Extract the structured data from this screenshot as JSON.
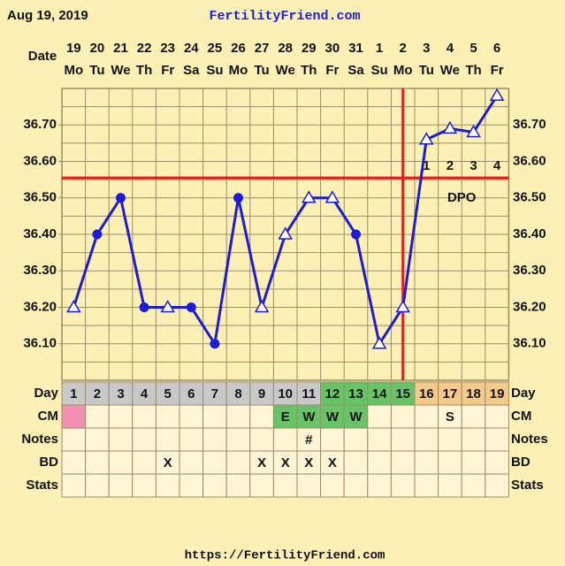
{
  "header": {
    "date": "Aug 19, 2019",
    "site": "FertilityFriend.com"
  },
  "chart_data": {
    "type": "line",
    "x_label": "Date",
    "categories": [
      "19",
      "20",
      "21",
      "22",
      "23",
      "24",
      "25",
      "26",
      "27",
      "28",
      "29",
      "30",
      "31",
      "1",
      "2",
      "3",
      "4",
      "5",
      "6"
    ],
    "weekdays": [
      "Mo",
      "Tu",
      "We",
      "Th",
      "Fr",
      "Sa",
      "Su",
      "Mo",
      "Tu",
      "We",
      "Th",
      "Fr",
      "Sa",
      "Su",
      "Mo",
      "Tu",
      "We",
      "Th",
      "Fr"
    ],
    "series": [
      {
        "color": "#1c1cd8",
        "values": [
          36.2,
          36.4,
          36.5,
          36.2,
          36.2,
          36.2,
          36.1,
          36.5,
          36.2,
          36.4,
          36.5,
          36.5,
          36.4,
          36.1,
          36.2,
          36.66,
          36.69,
          36.68,
          36.78
        ],
        "markers": [
          "triangle",
          "circle",
          "circle",
          "circle",
          "triangle",
          "circle",
          "circle",
          "circle",
          "triangle",
          "triangle",
          "triangle",
          "triangle",
          "circle",
          "triangle",
          "triangle",
          "triangle",
          "triangle",
          "triangle",
          "triangle"
        ]
      }
    ],
    "ylim": [
      36.0,
      36.8
    ],
    "yticks": [
      {
        "value": 36.1,
        "label": "36.10"
      },
      {
        "value": 36.2,
        "label": "36.20"
      },
      {
        "value": 36.3,
        "label": "36.30"
      },
      {
        "value": 36.4,
        "label": "36.40"
      },
      {
        "value": 36.5,
        "label": "36.50"
      },
      {
        "value": 36.6,
        "label": "36.60"
      },
      {
        "value": 36.7,
        "label": "36.70"
      }
    ],
    "ygrid": [
      36.05,
      36.1,
      36.15,
      36.2,
      36.25,
      36.3,
      36.35,
      36.4,
      36.45,
      36.5,
      36.55,
      36.6,
      36.65,
      36.7,
      36.75
    ],
    "grid": true,
    "coverline": 36.555,
    "coverline_color": "#e0201c",
    "ovulation_index": 14,
    "dpo_label": "DPO",
    "dpo": [
      "1",
      "2",
      "3",
      "4"
    ]
  },
  "table": {
    "rows": [
      {
        "label": "Day",
        "cells": [
          1,
          2,
          3,
          4,
          5,
          6,
          7,
          8,
          9,
          10,
          11,
          12,
          13,
          14,
          15,
          16,
          17,
          18,
          19
        ],
        "colors": [
          "#c8c8c8",
          "#c8c8c8",
          "#c8c8c8",
          "#c8c8c8",
          "#c8c8c8",
          "#c8c8c8",
          "#c8c8c8",
          "#c8c8c8",
          "#c8c8c8",
          "#c8c8c8",
          "#c8c8c8",
          "#66c466",
          "#66c466",
          "#66c466",
          "#66c466",
          "#f5c98a",
          "#f5c98a",
          "#f5c98a",
          "#f5c98a"
        ]
      },
      {
        "label": "CM",
        "cells": [
          null,
          null,
          null,
          null,
          null,
          null,
          null,
          null,
          null,
          "E",
          "W",
          "W",
          "W",
          null,
          null,
          null,
          "S",
          null,
          null
        ],
        "colors": [
          "#f48fb1",
          null,
          null,
          null,
          null,
          null,
          null,
          null,
          null,
          "#66c466",
          "#66c466",
          "#66c466",
          "#66c466",
          null,
          null,
          null,
          null,
          null,
          null
        ]
      },
      {
        "label": "Notes",
        "cells": [
          null,
          null,
          null,
          null,
          null,
          null,
          null,
          null,
          null,
          null,
          "#",
          null,
          null,
          null,
          null,
          null,
          null,
          null,
          null
        ]
      },
      {
        "label": "BD",
        "cells": [
          null,
          null,
          null,
          null,
          "X",
          null,
          null,
          null,
          "X",
          "X",
          "X",
          "X",
          null,
          null,
          null,
          null,
          null,
          null,
          null
        ]
      },
      {
        "label": "Stats",
        "cells": [
          null,
          null,
          null,
          null,
          null,
          null,
          null,
          null,
          null,
          null,
          null,
          null,
          null,
          null,
          null,
          null,
          null,
          null,
          null
        ]
      }
    ]
  },
  "footer": "https://FertilityFriend.com"
}
